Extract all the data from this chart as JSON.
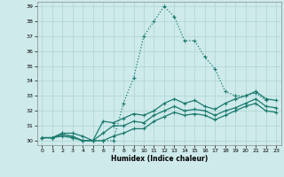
{
  "title": "",
  "xlabel": "Humidex (Indice chaleur)",
  "xlim": [
    -0.5,
    23.5
  ],
  "ylim": [
    29.7,
    39.3
  ],
  "yticks": [
    30,
    31,
    32,
    33,
    34,
    35,
    36,
    37,
    38,
    39
  ],
  "xticks": [
    0,
    1,
    2,
    3,
    4,
    5,
    6,
    7,
    8,
    9,
    10,
    11,
    12,
    13,
    14,
    15,
    16,
    17,
    18,
    19,
    20,
    21,
    22,
    23
  ],
  "bg_color": "#ceeaea",
  "line_color": "#1a7a6e",
  "grid_color": "#aed4d4",
  "series": [
    {
      "y": [
        30.2,
        30.2,
        30.5,
        30.2,
        30.0,
        30.0,
        30.0,
        30.0,
        32.5,
        34.2,
        37.0,
        38.0,
        39.0,
        38.3,
        36.7,
        36.7,
        35.6,
        34.8,
        33.3,
        33.0,
        33.0,
        33.2,
        32.7,
        null
      ],
      "linestyle": "dotted",
      "linewidth": 0.9
    },
    {
      "y": [
        30.2,
        30.2,
        30.5,
        30.5,
        30.3,
        30.0,
        31.3,
        31.2,
        31.5,
        31.8,
        31.7,
        32.0,
        32.5,
        32.8,
        32.5,
        32.7,
        32.3,
        32.1,
        32.5,
        32.8,
        33.0,
        33.3,
        32.8,
        32.7
      ],
      "linestyle": "solid",
      "linewidth": 0.9
    },
    {
      "y": [
        30.2,
        30.2,
        30.4,
        30.3,
        30.0,
        30.0,
        30.5,
        31.0,
        31.0,
        31.3,
        31.2,
        31.7,
        32.0,
        32.3,
        32.0,
        32.1,
        32.0,
        31.7,
        32.0,
        32.2,
        32.5,
        32.8,
        32.3,
        32.2
      ],
      "linestyle": "solid",
      "linewidth": 0.9
    },
    {
      "y": [
        30.2,
        30.2,
        30.3,
        30.2,
        30.0,
        30.0,
        30.0,
        30.3,
        30.5,
        30.8,
        30.8,
        31.3,
        31.6,
        31.9,
        31.7,
        31.8,
        31.7,
        31.4,
        31.7,
        32.0,
        32.3,
        32.5,
        32.0,
        31.9
      ],
      "linestyle": "solid",
      "linewidth": 0.9
    }
  ]
}
